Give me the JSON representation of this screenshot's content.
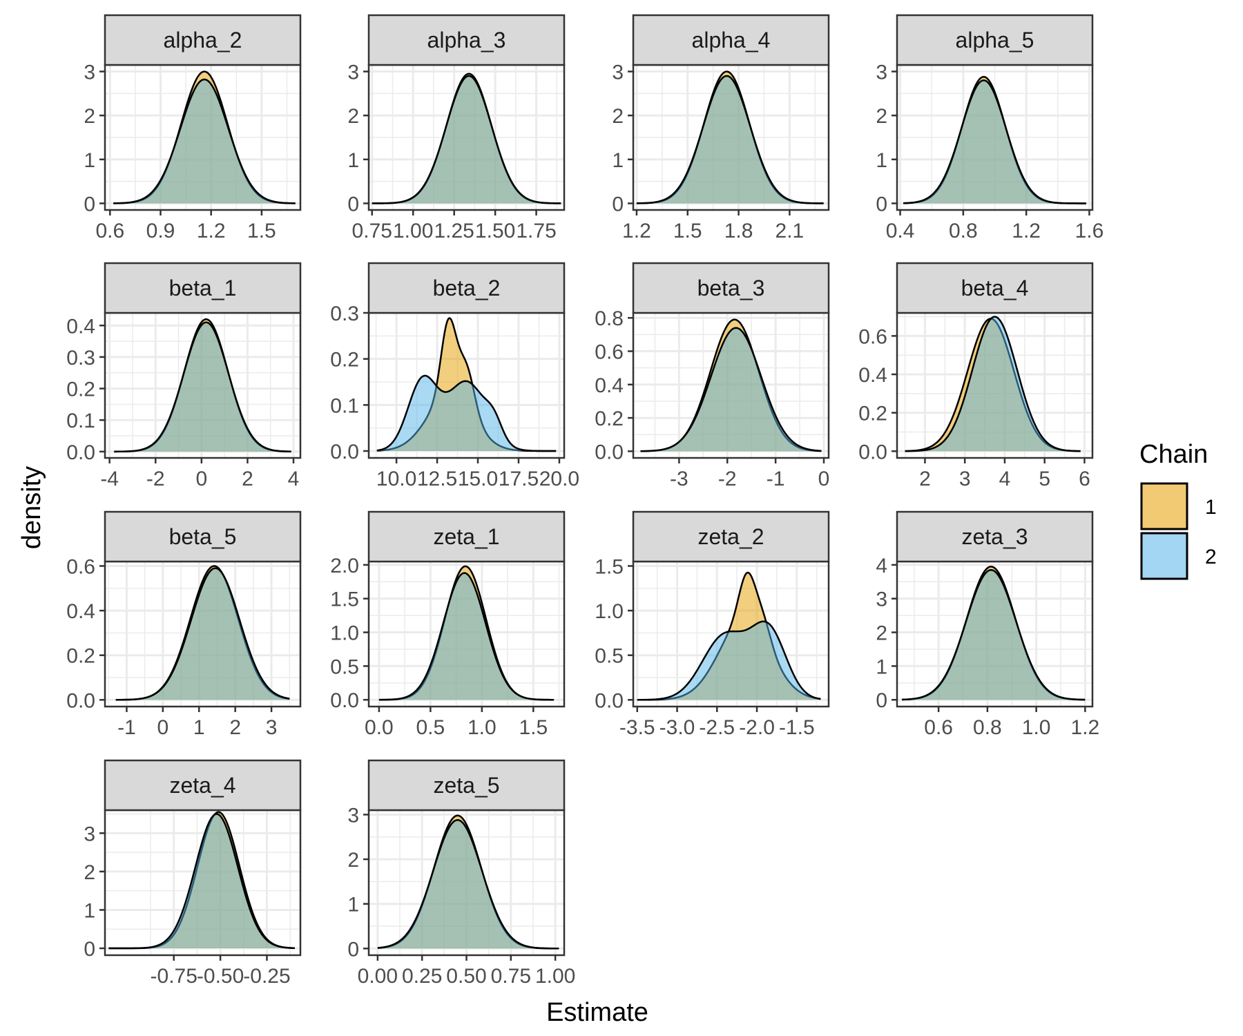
{
  "chart_data": {
    "type": "area",
    "xlabel": "Estimate",
    "ylabel": "density",
    "legend": {
      "title": "Chain",
      "placement": "right",
      "entries": [
        {
          "label": "1",
          "color": "#E69F00"
        },
        {
          "label": "2",
          "color": "#56B4E9"
        }
      ]
    },
    "colors": {
      "chain1": "#E69F00",
      "chain2": "#56B4E9",
      "outline": "#000000",
      "strip": "#d9d9d9",
      "grid": "#ebebeb"
    },
    "grid": true,
    "panels": [
      {
        "name": "alpha_2",
        "xlim": [
          0.57,
          1.73
        ],
        "ylim": [
          -0.15,
          3.15
        ],
        "xticks": [
          0.6,
          0.9,
          1.2,
          1.5
        ],
        "xtick_labels": [
          "0.6",
          "0.9",
          "1.2",
          "1.5"
        ],
        "yticks": [
          0,
          1,
          2,
          3
        ],
        "ytick_labels": [
          "0",
          "1",
          "2",
          "3"
        ],
        "range": [
          0.62,
          1.7
        ],
        "series": [
          {
            "name": "1",
            "mean": 1.16,
            "sd": 0.137,
            "peak": 3.0
          },
          {
            "name": "2",
            "mean": 1.16,
            "sd": 0.142,
            "peak": 2.82
          }
        ]
      },
      {
        "name": "alpha_3",
        "xlim": [
          0.73,
          1.92
        ],
        "ylim": [
          -0.15,
          3.15
        ],
        "xticks": [
          0.75,
          1.0,
          1.25,
          1.5,
          1.75
        ],
        "xtick_labels": [
          "0.75",
          "1.00",
          "1.25",
          "1.50",
          "1.75"
        ],
        "yticks": [
          0,
          1,
          2,
          3
        ],
        "ytick_labels": [
          "0",
          "1",
          "2",
          "3"
        ],
        "range": [
          0.75,
          1.9
        ],
        "series": [
          {
            "name": "1",
            "mean": 1.34,
            "sd": 0.136,
            "peak": 2.95
          },
          {
            "name": "2",
            "mean": 1.34,
            "sd": 0.138,
            "peak": 2.9
          }
        ]
      },
      {
        "name": "alpha_4",
        "xlim": [
          1.18,
          2.33
        ],
        "ylim": [
          -0.15,
          3.15
        ],
        "xticks": [
          1.2,
          1.5,
          1.8,
          2.1
        ],
        "xtick_labels": [
          "1.2",
          "1.5",
          "1.8",
          "2.1"
        ],
        "yticks": [
          0,
          1,
          2,
          3
        ],
        "ytick_labels": [
          "0",
          "1",
          "2",
          "3"
        ],
        "range": [
          1.2,
          2.3
        ],
        "series": [
          {
            "name": "1",
            "mean": 1.73,
            "sd": 0.134,
            "peak": 3.0
          },
          {
            "name": "2",
            "mean": 1.73,
            "sd": 0.138,
            "peak": 2.9
          }
        ]
      },
      {
        "name": "alpha_5",
        "xlim": [
          0.38,
          1.62
        ],
        "ylim": [
          -0.15,
          3.15
        ],
        "xticks": [
          0.4,
          0.8,
          1.2,
          1.6
        ],
        "xtick_labels": [
          "0.4",
          "0.8",
          "1.2",
          "1.6"
        ],
        "yticks": [
          0,
          1,
          2,
          3
        ],
        "ytick_labels": [
          "0",
          "1",
          "2",
          "3"
        ],
        "range": [
          0.42,
          1.58
        ],
        "series": [
          {
            "name": "1",
            "mean": 0.93,
            "sd": 0.138,
            "peak": 2.88
          },
          {
            "name": "2",
            "mean": 0.93,
            "sd": 0.142,
            "peak": 2.8
          }
        ]
      },
      {
        "name": "beta_1",
        "xlim": [
          -4.2,
          4.3
        ],
        "ylim": [
          -0.02,
          0.44
        ],
        "xticks": [
          -4,
          -2,
          0,
          2,
          4
        ],
        "xtick_labels": [
          "-4",
          "-2",
          "0",
          "2",
          "4"
        ],
        "yticks": [
          0,
          0.1,
          0.2,
          0.3,
          0.4
        ],
        "ytick_labels": [
          "0.0",
          "0.1",
          "0.2",
          "0.3",
          "0.4"
        ],
        "range": [
          -3.8,
          3.9
        ],
        "series": [
          {
            "name": "1",
            "mean": 0.2,
            "sd": 0.95,
            "peak": 0.42
          },
          {
            "name": "2",
            "mean": 0.2,
            "sd": 0.97,
            "peak": 0.41
          }
        ]
      },
      {
        "name": "beta_2",
        "xlim": [
          8.3,
          20.3
        ],
        "ylim": [
          -0.015,
          0.3
        ],
        "xticks": [
          10,
          12.5,
          15,
          17.5,
          20
        ],
        "xtick_labels": [
          "10.0",
          "12.5",
          "15.0",
          "17.5",
          "20.0"
        ],
        "yticks": [
          0,
          0.1,
          0.2,
          0.3
        ],
        "ytick_labels": [
          "0.0",
          "0.1",
          "0.2",
          "0.3"
        ],
        "range": [
          8.8,
          19.8
        ],
        "series": [
          {
            "name": "1",
            "bumps": [
              {
                "mean": 13.3,
                "sd": 1.4,
                "peak": 0.12
              },
              {
                "mean": 13.2,
                "sd": 0.45,
                "peak": 0.16
              },
              {
                "mean": 14.3,
                "sd": 0.5,
                "peak": 0.09
              }
            ]
          },
          {
            "name": "2",
            "bumps": [
              {
                "mean": 11.6,
                "sd": 0.9,
                "peak": 0.15
              },
              {
                "mean": 14.3,
                "sd": 1.2,
                "peak": 0.15
              },
              {
                "mean": 16.0,
                "sd": 0.5,
                "peak": 0.035
              }
            ]
          }
        ]
      },
      {
        "name": "beta_3",
        "xlim": [
          -3.95,
          0.1
        ],
        "ylim": [
          -0.04,
          0.83
        ],
        "xticks": [
          -3,
          -2,
          -1,
          0
        ],
        "xtick_labels": [
          "-3",
          "-2",
          "-1",
          "0"
        ],
        "yticks": [
          0,
          0.2,
          0.4,
          0.6,
          0.8
        ],
        "ytick_labels": [
          "0.0",
          "0.2",
          "0.4",
          "0.6",
          "0.8"
        ],
        "range": [
          -3.8,
          -0.05
        ],
        "series": [
          {
            "name": "1",
            "mean": -1.85,
            "sd": 0.5,
            "peak": 0.79
          },
          {
            "name": "2",
            "mean": -1.82,
            "sd": 0.52,
            "peak": 0.74
          }
        ]
      },
      {
        "name": "beta_4",
        "xlim": [
          1.3,
          6.2
        ],
        "ylim": [
          -0.035,
          0.72
        ],
        "xticks": [
          2,
          3,
          4,
          5,
          6
        ],
        "xtick_labels": [
          "2",
          "3",
          "4",
          "5",
          "6"
        ],
        "yticks": [
          0,
          0.2,
          0.4,
          0.6
        ],
        "ytick_labels": [
          "0.0",
          "0.2",
          "0.4",
          "0.6"
        ],
        "range": [
          1.5,
          5.9
        ],
        "series": [
          {
            "name": "1",
            "mean": 3.65,
            "sd": 0.58,
            "peak": 0.69
          },
          {
            "name": "2",
            "mean": 3.75,
            "sd": 0.56,
            "peak": 0.7
          }
        ]
      },
      {
        "name": "beta_5",
        "xlim": [
          -1.6,
          3.8
        ],
        "ylim": [
          -0.03,
          0.62
        ],
        "xticks": [
          -1,
          0,
          1,
          2,
          3
        ],
        "xtick_labels": [
          "-1",
          "0",
          "1",
          "2",
          "3"
        ],
        "yticks": [
          0,
          0.2,
          0.4,
          0.6
        ],
        "ytick_labels": [
          "0.0",
          "0.2",
          "0.4",
          "0.6"
        ],
        "range": [
          -1.3,
          3.5
        ],
        "series": [
          {
            "name": "1",
            "mean": 1.42,
            "sd": 0.66,
            "peak": 0.6
          },
          {
            "name": "2",
            "mean": 1.45,
            "sd": 0.67,
            "peak": 0.59
          }
        ]
      },
      {
        "name": "zeta_1",
        "xlim": [
          -0.1,
          1.8
        ],
        "ylim": [
          -0.1,
          2.05
        ],
        "xticks": [
          0,
          0.5,
          1.0,
          1.5
        ],
        "xtick_labels": [
          "0.0",
          "0.5",
          "1.0",
          "1.5"
        ],
        "yticks": [
          0,
          0.5,
          1.0,
          1.5,
          2.0
        ],
        "ytick_labels": [
          "0.0",
          "0.5",
          "1.0",
          "1.5",
          "2.0"
        ],
        "range": [
          0.0,
          1.7
        ],
        "series": [
          {
            "name": "1",
            "mean": 0.84,
            "sd": 0.2,
            "peak": 1.98
          },
          {
            "name": "2",
            "mean": 0.83,
            "sd": 0.205,
            "peak": 1.88
          }
        ]
      },
      {
        "name": "zeta_2",
        "xlim": [
          -3.55,
          -1.1
        ],
        "ylim": [
          -0.075,
          1.55
        ],
        "xticks": [
          -3.5,
          -3.0,
          -2.5,
          -2.0,
          -1.5
        ],
        "xtick_labels": [
          "-3.5",
          "-3.0",
          "-2.5",
          "-2.0",
          "-1.5"
        ],
        "yticks": [
          0,
          0.5,
          1.0,
          1.5
        ],
        "ytick_labels": [
          "0.0",
          "0.5",
          "1.0",
          "1.5"
        ],
        "range": [
          -3.5,
          -1.2
        ],
        "series": [
          {
            "name": "1",
            "bumps": [
              {
                "mean": -2.15,
                "sd": 0.32,
                "peak": 0.9
              },
              {
                "mean": -2.12,
                "sd": 0.1,
                "peak": 0.5
              },
              {
                "mean": -1.92,
                "sd": 0.1,
                "peak": 0.22
              }
            ]
          },
          {
            "name": "2",
            "bumps": [
              {
                "mean": -2.4,
                "sd": 0.28,
                "peak": 0.72
              },
              {
                "mean": -1.85,
                "sd": 0.22,
                "peak": 0.75
              }
            ]
          }
        ]
      },
      {
        "name": "zeta_3",
        "xlim": [
          0.43,
          1.23
        ],
        "ylim": [
          -0.2,
          4.1
        ],
        "xticks": [
          0.6,
          0.8,
          1.0,
          1.2
        ],
        "xtick_labels": [
          "0.6",
          "0.8",
          "1.0",
          "1.2"
        ],
        "yticks": [
          0,
          1,
          2,
          3,
          4
        ],
        "ytick_labels": [
          "0",
          "1",
          "2",
          "3",
          "4"
        ],
        "range": [
          0.45,
          1.2
        ],
        "series": [
          {
            "name": "1",
            "mean": 0.815,
            "sd": 0.1,
            "peak": 3.95
          },
          {
            "name": "2",
            "mean": 0.815,
            "sd": 0.102,
            "peak": 3.85
          }
        ]
      },
      {
        "name": "zeta_4",
        "xlim": [
          -1.12,
          -0.07
        ],
        "ylim": [
          -0.18,
          3.6
        ],
        "xticks": [
          -0.75,
          -0.5,
          -0.25
        ],
        "xtick_labels": [
          "-0.75",
          "-0.50",
          "-0.25"
        ],
        "yticks": [
          0,
          1,
          2,
          3
        ],
        "ytick_labels": [
          "0",
          "1",
          "2",
          "3"
        ],
        "range": [
          -1.1,
          -0.1
        ],
        "series": [
          {
            "name": "1",
            "mean": -0.51,
            "sd": 0.112,
            "peak": 3.55
          },
          {
            "name": "2",
            "mean": -0.52,
            "sd": 0.114,
            "peak": 3.5
          }
        ]
      },
      {
        "name": "zeta_5",
        "xlim": [
          -0.05,
          1.05
        ],
        "ylim": [
          -0.15,
          3.1
        ],
        "xticks": [
          0,
          0.25,
          0.5,
          0.75,
          1.0
        ],
        "xtick_labels": [
          "0.00",
          "0.25",
          "0.50",
          "0.75",
          "1.00"
        ],
        "yticks": [
          0,
          1,
          2,
          3
        ],
        "ytick_labels": [
          "0",
          "1",
          "2",
          "3"
        ],
        "range": [
          0.0,
          1.02
        ],
        "series": [
          {
            "name": "1",
            "mean": 0.45,
            "sd": 0.133,
            "peak": 2.98
          },
          {
            "name": "2",
            "mean": 0.45,
            "sd": 0.137,
            "peak": 2.88
          }
        ]
      }
    ]
  }
}
